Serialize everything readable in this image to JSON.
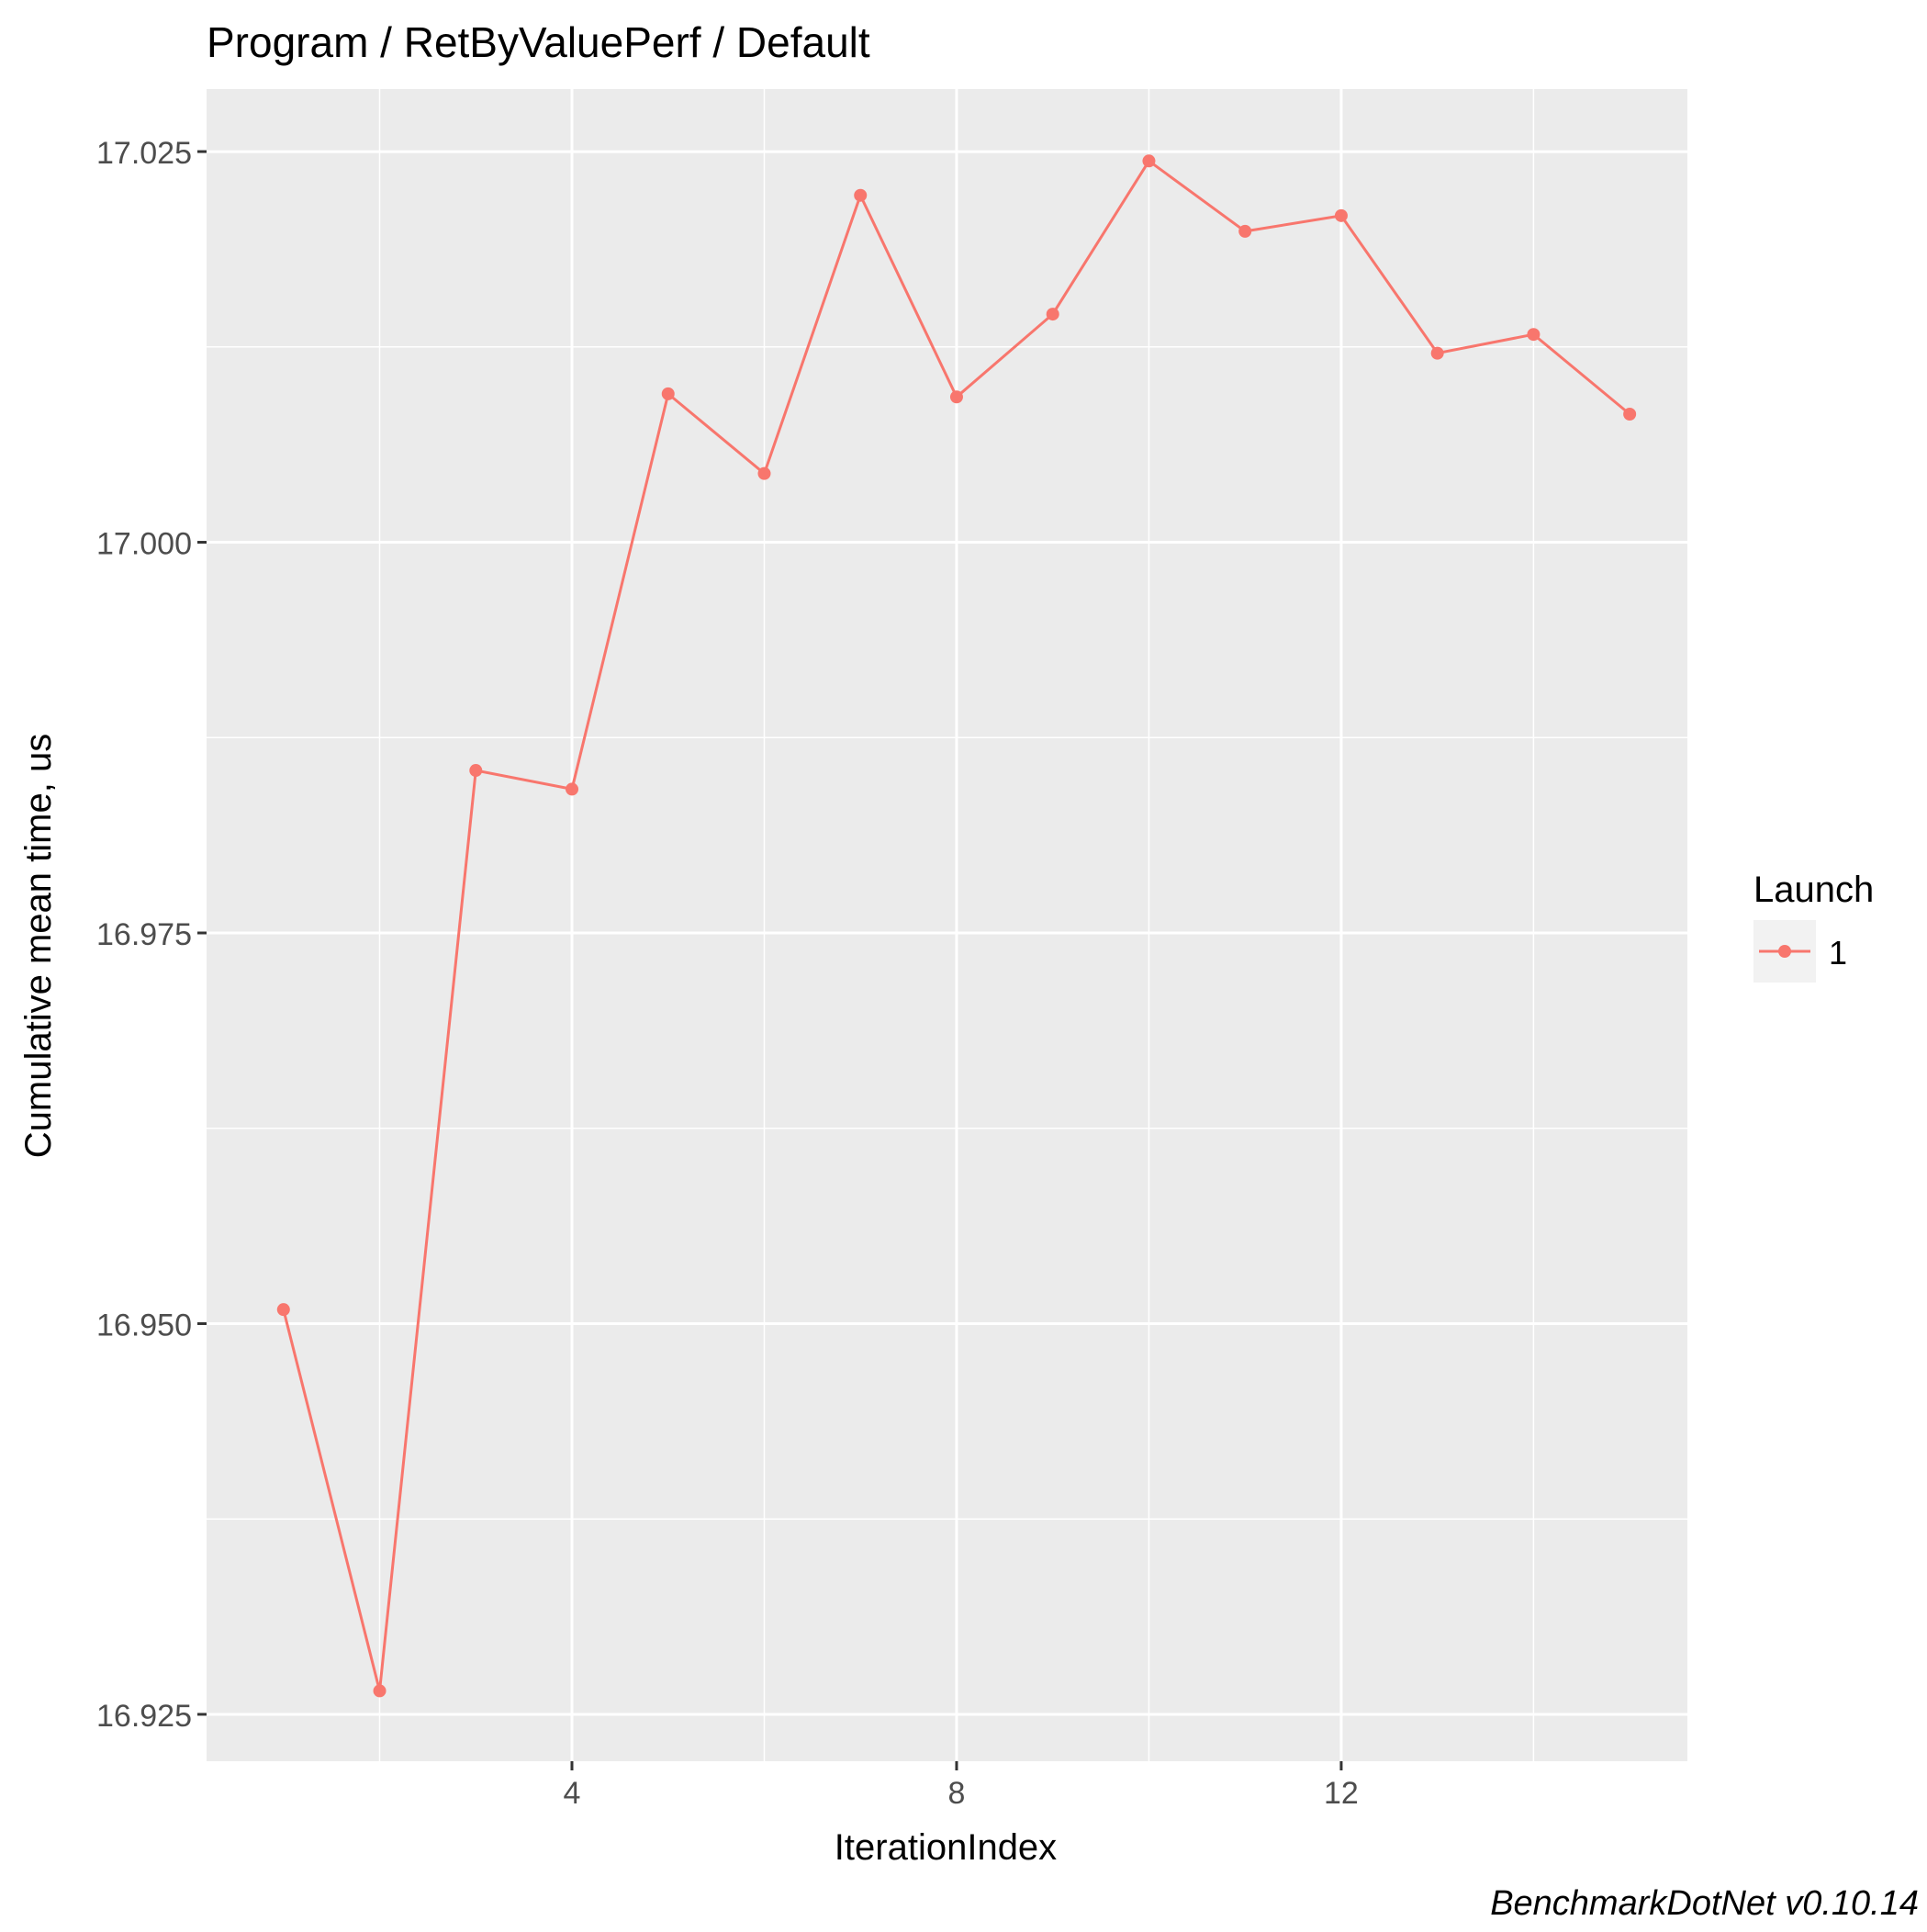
{
  "chart_data": {
    "type": "line",
    "title": "Program / RetByValuePerf / Default",
    "xlabel": "IterationIndex",
    "ylabel": "Cumulative mean time, us",
    "x_ticks": [
      4,
      8,
      12
    ],
    "y_ticks": [
      16.925,
      16.95,
      16.975,
      17.0,
      17.025
    ],
    "y_tick_labels": [
      "16.925",
      "16.950",
      "16.975",
      "17.000",
      "17.025"
    ],
    "xlim": [
      0.2,
      15.6
    ],
    "ylim": [
      16.922,
      17.029
    ],
    "grid": true,
    "legend": {
      "title": "Launch",
      "placement": "right"
    },
    "series": [
      {
        "name": "1",
        "color": "#F8766D",
        "x": [
          1,
          2,
          3,
          4,
          5,
          6,
          7,
          8,
          9,
          10,
          11,
          12,
          13,
          14,
          15
        ],
        "y": [
          16.9509,
          16.9265,
          16.9854,
          16.9842,
          17.0095,
          17.0044,
          17.0222,
          17.0093,
          17.0146,
          17.0244,
          17.0199,
          17.0209,
          17.0121,
          17.0133,
          17.0082
        ]
      }
    ],
    "caption": "BenchmarkDotNet v0.10.14",
    "panel_bg": "#EBEBEB",
    "grid_major": "#FFFFFF"
  }
}
